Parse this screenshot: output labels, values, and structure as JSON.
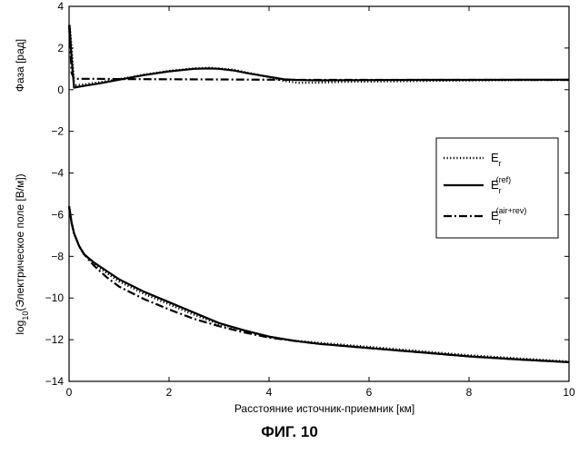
{
  "caption": "ФИГ. 10",
  "chart_data": {
    "type": "line",
    "xlabel": "Расстояние источник-приемник [км]",
    "ylabel_main": "log",
    "ylabel_sub": "10",
    "ylabel_rest": "(Электрическое поле [В/м])",
    "ylabel_top": "Фаза [рад]",
    "xlim": [
      0,
      10
    ],
    "ylim": [
      -14,
      4
    ],
    "xticks": [
      "0",
      "2",
      "4",
      "6",
      "8",
      "10"
    ],
    "yticks": [
      "4",
      "2",
      "0",
      "−2",
      "−4",
      "−6",
      "−8",
      "−10",
      "−12",
      "−14"
    ],
    "grid": false,
    "legend_placement": "right",
    "legend": [
      {
        "main": "E",
        "sub": "r",
        "sup": ""
      },
      {
        "main": "E",
        "sub": "r",
        "sup": "(ref)"
      },
      {
        "main": "E",
        "sub": "r",
        "sup": "(air+rev)"
      }
    ],
    "series": [
      {
        "style": "dotted",
        "points": [
          [
            0.01,
            3.1
          ],
          [
            0.05,
            2.0
          ],
          [
            0.1,
            0.2
          ],
          [
            0.3,
            0.25
          ],
          [
            0.6,
            0.35
          ],
          [
            1.0,
            0.5
          ],
          [
            1.5,
            0.72
          ],
          [
            2.0,
            0.9
          ],
          [
            2.5,
            1.02
          ],
          [
            2.8,
            1.05
          ],
          [
            3.0,
            1.02
          ],
          [
            3.3,
            0.95
          ],
          [
            3.6,
            0.8
          ],
          [
            4.0,
            0.6
          ],
          [
            4.3,
            0.42
          ],
          [
            4.6,
            0.33
          ],
          [
            5.0,
            0.34
          ],
          [
            5.5,
            0.38
          ],
          [
            6.0,
            0.39
          ],
          [
            7.0,
            0.42
          ],
          [
            8.0,
            0.45
          ],
          [
            9.0,
            0.46
          ],
          [
            10.0,
            0.47
          ]
        ]
      },
      {
        "style": "solid",
        "points": [
          [
            0.01,
            3.1
          ],
          [
            0.05,
            1.5
          ],
          [
            0.1,
            0.1
          ],
          [
            0.3,
            0.18
          ],
          [
            0.6,
            0.3
          ],
          [
            1.0,
            0.48
          ],
          [
            1.5,
            0.7
          ],
          [
            2.0,
            0.88
          ],
          [
            2.5,
            1.0
          ],
          [
            2.8,
            1.02
          ],
          [
            3.0,
            1.0
          ],
          [
            3.3,
            0.92
          ],
          [
            3.6,
            0.78
          ],
          [
            4.0,
            0.62
          ],
          [
            4.3,
            0.5
          ],
          [
            4.6,
            0.46
          ],
          [
            5.0,
            0.45
          ],
          [
            6.0,
            0.46
          ],
          [
            7.0,
            0.47
          ],
          [
            8.0,
            0.47
          ],
          [
            9.0,
            0.48
          ],
          [
            10.0,
            0.48
          ]
        ]
      },
      {
        "style": "dashdot",
        "points": [
          [
            0.0,
            3.1
          ],
          [
            0.05,
            0.8
          ],
          [
            0.1,
            0.52
          ],
          [
            0.5,
            0.52
          ],
          [
            1.0,
            0.51
          ],
          [
            2.0,
            0.5
          ],
          [
            3.0,
            0.49
          ],
          [
            4.0,
            0.48
          ],
          [
            5.0,
            0.47
          ],
          [
            6.0,
            0.47
          ],
          [
            7.0,
            0.47
          ],
          [
            8.0,
            0.47
          ],
          [
            9.0,
            0.47
          ],
          [
            10.0,
            0.47
          ]
        ]
      },
      {
        "style": "dotted",
        "points": [
          [
            0.0,
            -5.6
          ],
          [
            0.05,
            -6.4
          ],
          [
            0.1,
            -6.9
          ],
          [
            0.2,
            -7.5
          ],
          [
            0.3,
            -7.9
          ],
          [
            0.5,
            -8.35
          ],
          [
            0.75,
            -8.8
          ],
          [
            1.0,
            -9.2
          ],
          [
            1.5,
            -9.8
          ],
          [
            2.0,
            -10.3
          ],
          [
            2.5,
            -10.8
          ],
          [
            3.0,
            -11.25
          ],
          [
            3.5,
            -11.55
          ],
          [
            4.0,
            -11.85
          ],
          [
            4.5,
            -12.05
          ],
          [
            5.0,
            -12.15
          ],
          [
            5.5,
            -12.25
          ],
          [
            6.0,
            -12.35
          ],
          [
            7.0,
            -12.55
          ],
          [
            8.0,
            -12.75
          ],
          [
            9.0,
            -12.9
          ],
          [
            10.0,
            -13.05
          ]
        ]
      },
      {
        "style": "solid",
        "points": [
          [
            0.0,
            -5.6
          ],
          [
            0.05,
            -6.4
          ],
          [
            0.1,
            -6.9
          ],
          [
            0.2,
            -7.5
          ],
          [
            0.3,
            -7.9
          ],
          [
            0.5,
            -8.3
          ],
          [
            0.75,
            -8.7
          ],
          [
            1.0,
            -9.1
          ],
          [
            1.5,
            -9.7
          ],
          [
            2.0,
            -10.2
          ],
          [
            2.5,
            -10.7
          ],
          [
            3.0,
            -11.2
          ],
          [
            3.5,
            -11.55
          ],
          [
            4.0,
            -11.85
          ],
          [
            4.5,
            -12.05
          ],
          [
            5.0,
            -12.2
          ],
          [
            5.5,
            -12.3
          ],
          [
            6.0,
            -12.4
          ],
          [
            7.0,
            -12.6
          ],
          [
            8.0,
            -12.8
          ],
          [
            9.0,
            -12.95
          ],
          [
            10.0,
            -13.08
          ]
        ]
      },
      {
        "style": "dashdot",
        "points": [
          [
            0.0,
            -5.6
          ],
          [
            0.05,
            -6.4
          ],
          [
            0.1,
            -6.9
          ],
          [
            0.2,
            -7.5
          ],
          [
            0.3,
            -7.9
          ],
          [
            0.5,
            -8.45
          ],
          [
            0.75,
            -9.0
          ],
          [
            1.0,
            -9.45
          ],
          [
            1.5,
            -10.05
          ],
          [
            2.0,
            -10.55
          ],
          [
            2.5,
            -11.0
          ],
          [
            3.0,
            -11.35
          ],
          [
            3.5,
            -11.65
          ],
          [
            4.0,
            -11.9
          ],
          [
            4.5,
            -12.05
          ],
          [
            5.0,
            -12.2
          ],
          [
            5.5,
            -12.3
          ],
          [
            6.0,
            -12.4
          ],
          [
            7.0,
            -12.6
          ],
          [
            8.0,
            -12.8
          ],
          [
            9.0,
            -12.95
          ],
          [
            10.0,
            -13.08
          ]
        ]
      }
    ]
  }
}
